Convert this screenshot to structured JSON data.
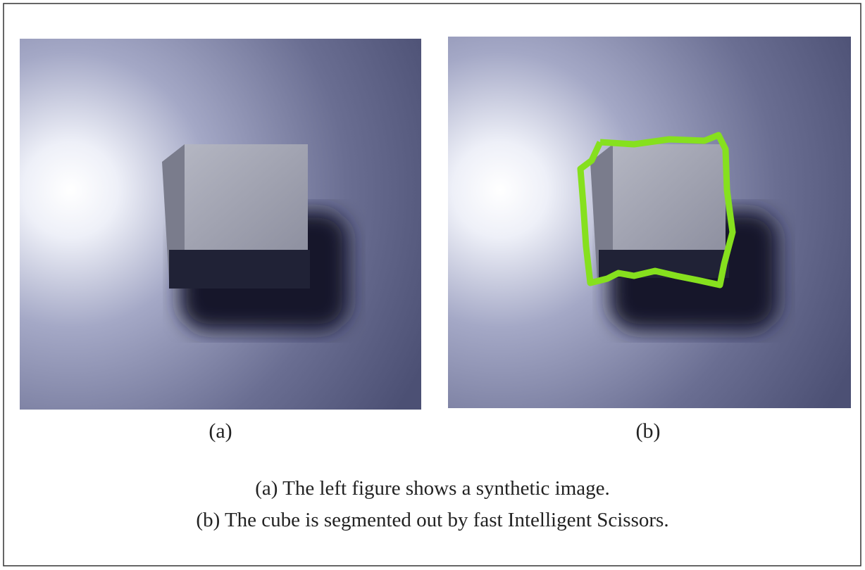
{
  "panels": [
    {
      "label": "(a)"
    },
    {
      "label": "(b)"
    }
  ],
  "caption": [
    "(a) The left figure shows a synthetic image.",
    "(b) The cube is segmented out by fast Intelligent Scissors."
  ]
}
